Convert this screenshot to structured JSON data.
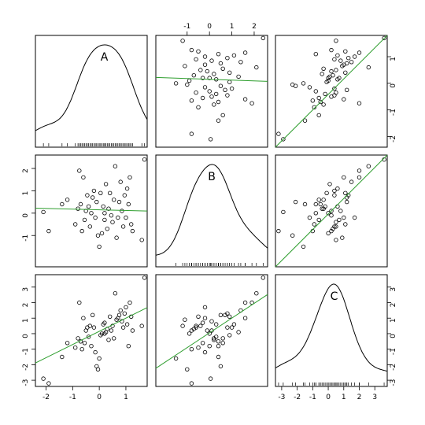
{
  "chart_data": {
    "type": "scatter",
    "kind": "scatterplot-matrix",
    "variables": [
      "A",
      "B",
      "C"
    ],
    "diagonal": "density-with-rug",
    "fit_line_color": "#2e9e2e",
    "ranges": {
      "A": [
        -2.4,
        1.8
      ],
      "B": [
        -2.4,
        2.6
      ],
      "C": [
        -3.4,
        3.8
      ]
    },
    "ticks": {
      "A": [
        -2,
        -1,
        0,
        1
      ],
      "B": [
        -1,
        0,
        1,
        2
      ],
      "C": [
        -3,
        -2,
        -1,
        0,
        1,
        2,
        3
      ]
    },
    "fits": {
      "B_on_A": {
        "intercept": 0.15,
        "slope": -0.03
      },
      "C_on_A": {
        "intercept": 0.15,
        "slope": 0.85
      },
      "C_on_B": {
        "intercept": 0.05,
        "slope": 0.95
      }
    },
    "observations": [
      {
        "A": -2.1,
        "B": 0.05,
        "C": -2.9
      },
      {
        "A": -1.9,
        "B": -0.8,
        "C": -3.2
      },
      {
        "A": -1.4,
        "B": 0.4,
        "C": -1.5
      },
      {
        "A": -1.2,
        "B": 0.6,
        "C": -0.6
      },
      {
        "A": -0.9,
        "B": -0.5,
        "C": -0.9
      },
      {
        "A": -0.8,
        "B": 0.2,
        "C": -0.3
      },
      {
        "A": -0.75,
        "B": 1.9,
        "C": 2.0
      },
      {
        "A": -0.7,
        "B": 0.4,
        "C": -0.5
      },
      {
        "A": -0.6,
        "B": 1.6,
        "C": 1.0
      },
      {
        "A": -0.55,
        "B": -0.3,
        "C": -0.6
      },
      {
        "A": -0.5,
        "B": 0.1,
        "C": 0.2
      },
      {
        "A": -0.45,
        "B": 0.8,
        "C": 0.4
      },
      {
        "A": -0.4,
        "B": 0.3,
        "C": -0.2
      },
      {
        "A": -0.35,
        "B": -0.6,
        "C": 0.5
      },
      {
        "A": -0.3,
        "B": 0.0,
        "C": -0.8
      },
      {
        "A": -0.25,
        "B": 0.7,
        "C": 1.2
      },
      {
        "A": -0.2,
        "B": 1.0,
        "C": 0.4
      },
      {
        "A": -0.15,
        "B": -0.2,
        "C": -1.2
      },
      {
        "A": -0.1,
        "B": 0.5,
        "C": -2.1
      },
      {
        "A": -0.05,
        "B": -1.0,
        "C": -2.3
      },
      {
        "A": 0.0,
        "B": -1.5,
        "C": -1.6
      },
      {
        "A": 0.05,
        "B": 0.9,
        "C": -0.1
      },
      {
        "A": 0.1,
        "B": -0.9,
        "C": 0.0
      },
      {
        "A": 0.15,
        "B": 0.3,
        "C": 0.6
      },
      {
        "A": 0.2,
        "B": -0.3,
        "C": 0.7
      },
      {
        "A": 0.25,
        "B": 1.3,
        "C": 0.1
      },
      {
        "A": 0.3,
        "B": -0.7,
        "C": 0.3
      },
      {
        "A": 0.35,
        "B": 0.2,
        "C": -0.4
      },
      {
        "A": 0.4,
        "B": 0.9,
        "C": 1.1
      },
      {
        "A": 0.45,
        "B": -0.1,
        "C": 0.2
      },
      {
        "A": 0.5,
        "B": -0.4,
        "C": 0.5
      },
      {
        "A": 0.55,
        "B": 0.6,
        "C": -0.3
      },
      {
        "A": 0.6,
        "B": 2.1,
        "C": 2.6
      },
      {
        "A": 0.65,
        "B": -1.1,
        "C": 0.9
      },
      {
        "A": 0.7,
        "B": -0.2,
        "C": 1.0
      },
      {
        "A": 0.75,
        "B": 0.5,
        "C": 1.2
      },
      {
        "A": 0.8,
        "B": 1.4,
        "C": 1.5
      },
      {
        "A": 0.85,
        "B": 0.1,
        "C": 0.8
      },
      {
        "A": 0.9,
        "B": -0.6,
        "C": 0.4
      },
      {
        "A": 0.95,
        "B": 0.8,
        "C": 1.3
      },
      {
        "A": 1.0,
        "B": -0.2,
        "C": 1.7
      },
      {
        "A": 1.05,
        "B": 1.1,
        "C": 0.6
      },
      {
        "A": 1.1,
        "B": 0.4,
        "C": -0.8
      },
      {
        "A": 1.15,
        "B": 1.6,
        "C": 2.0
      },
      {
        "A": 1.2,
        "B": -0.5,
        "C": 1.1
      },
      {
        "A": 1.25,
        "B": -0.8,
        "C": 0.2
      },
      {
        "A": 1.6,
        "B": -1.2,
        "C": 0.5
      },
      {
        "A": 1.7,
        "B": 2.4,
        "C": 3.6
      },
      {
        "A": 0.2,
        "B": 0.0,
        "C": 0.0
      },
      {
        "A": -0.65,
        "B": -0.8,
        "C": -1.0
      }
    ]
  }
}
